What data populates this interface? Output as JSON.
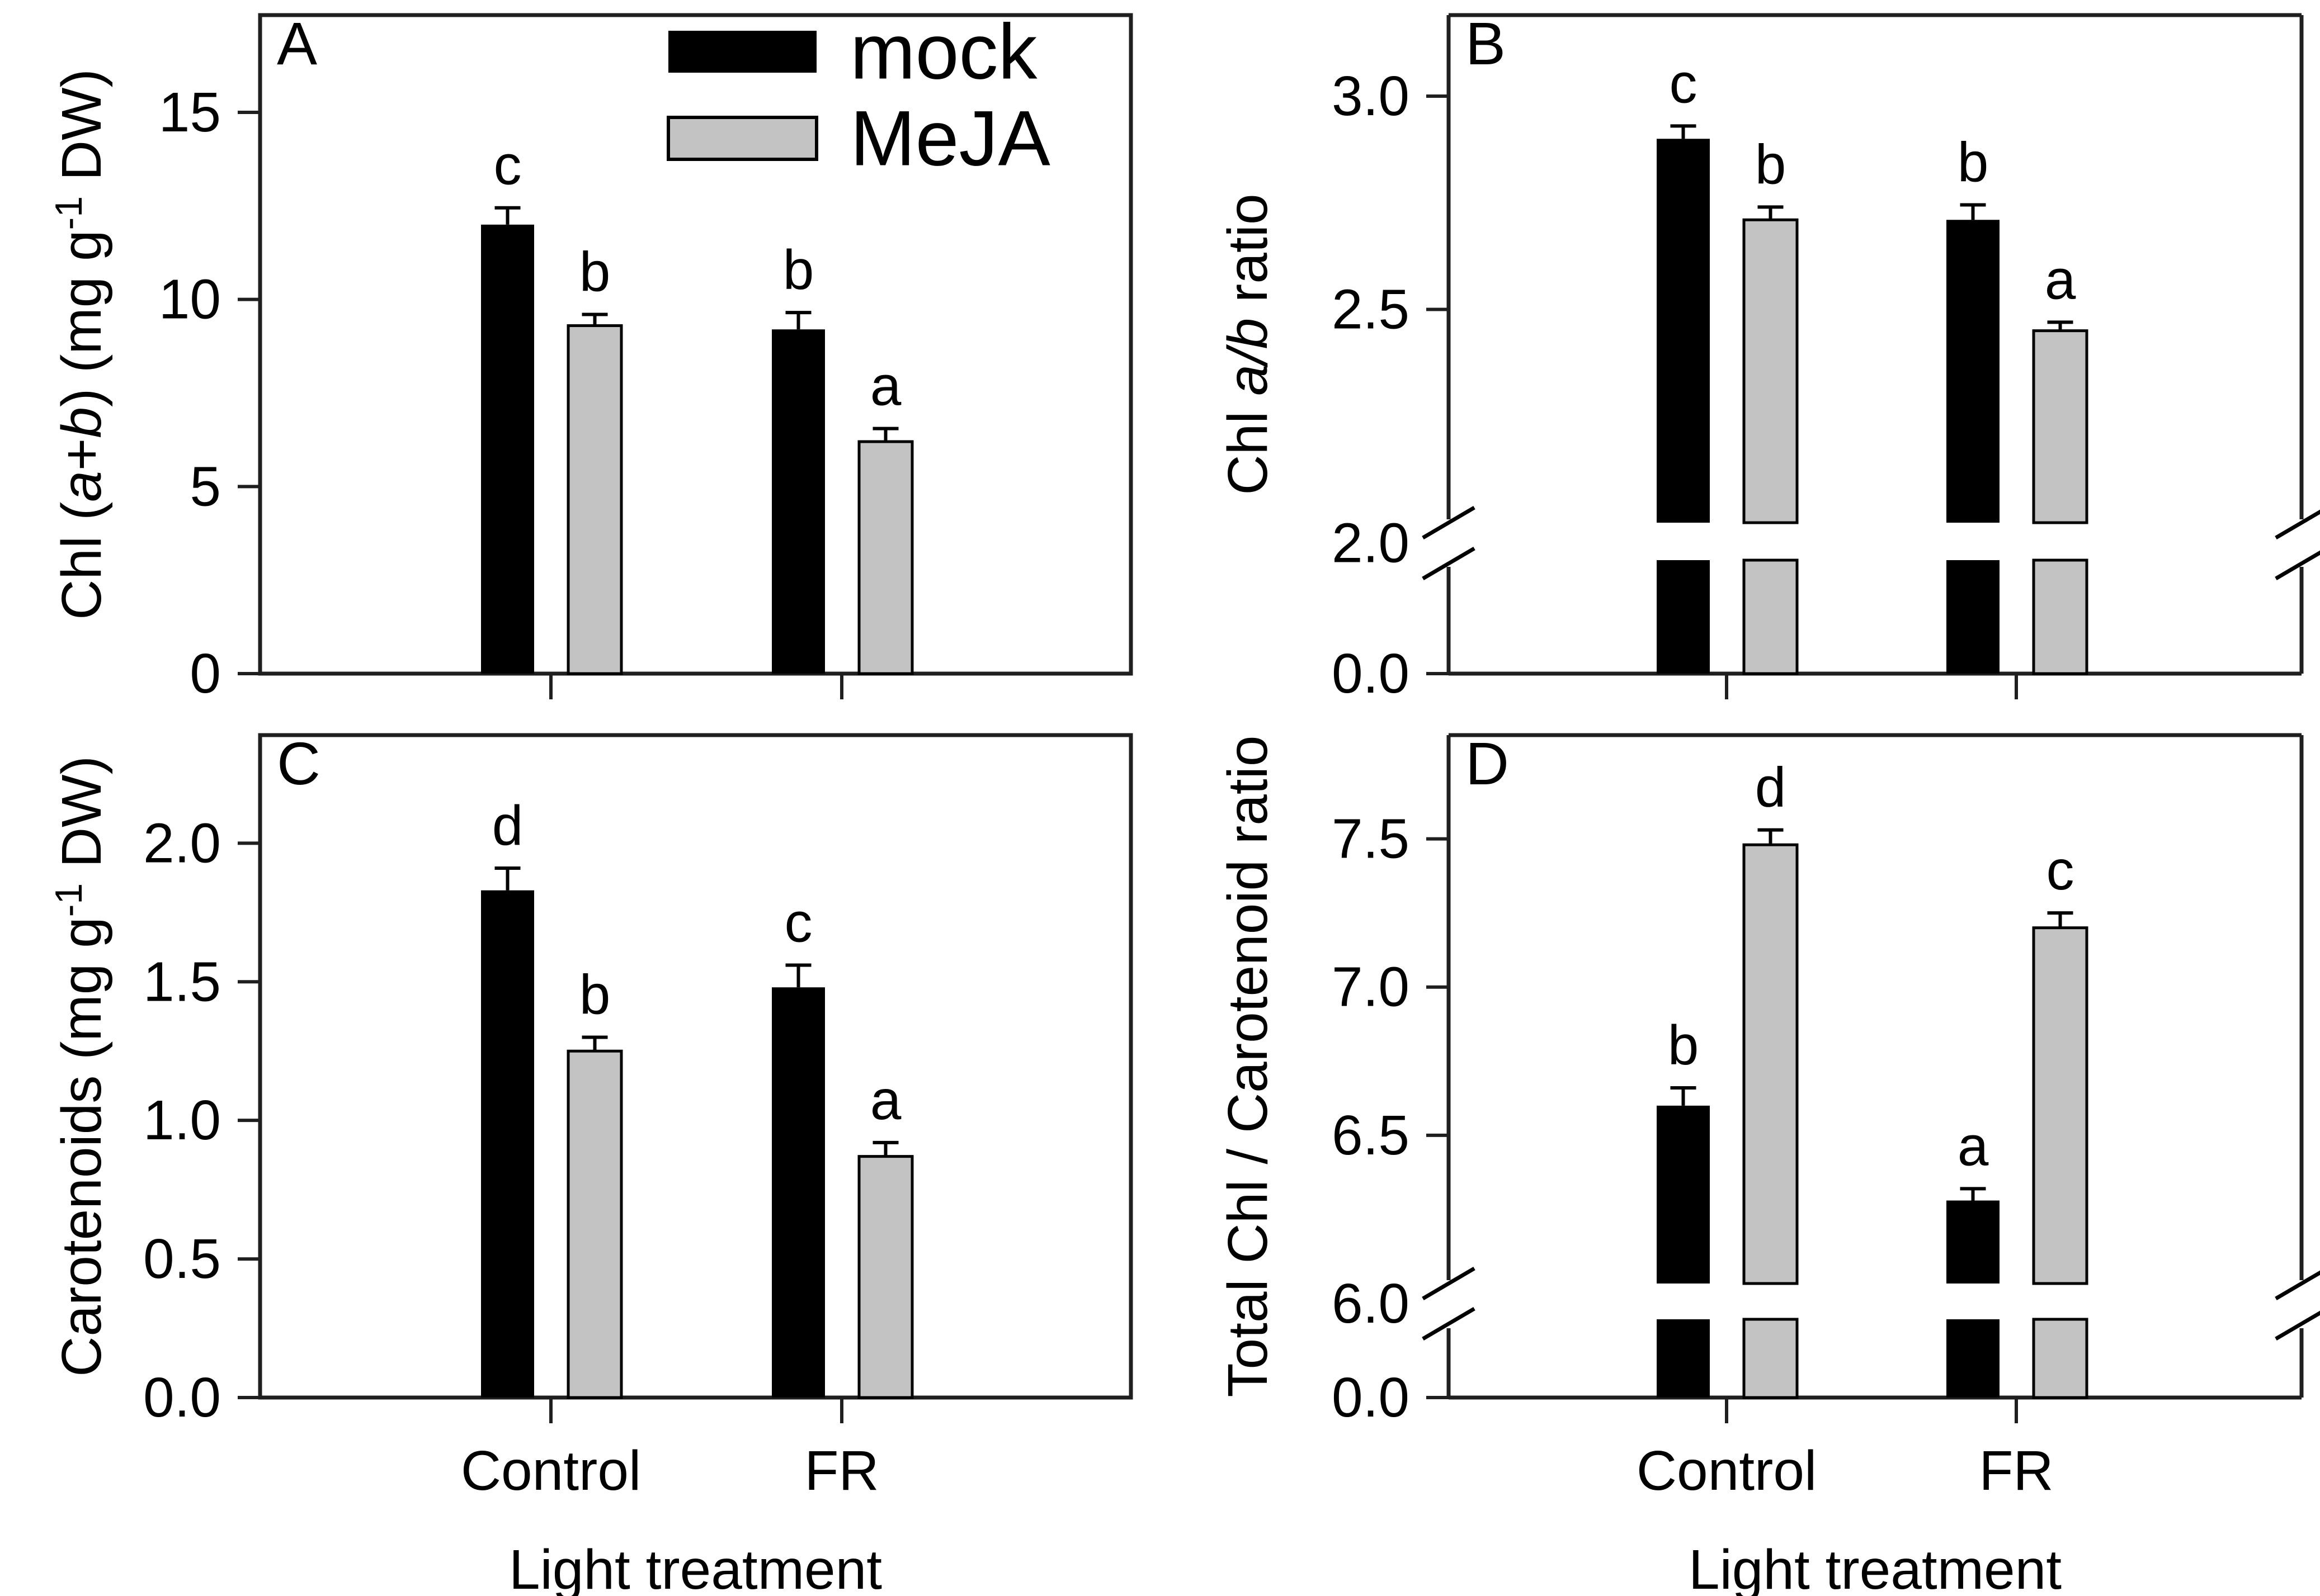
{
  "figure": {
    "background": "#ffffff",
    "x_axis_label": "Light treatment",
    "categories": [
      "Control",
      "FR"
    ],
    "legend": {
      "items": [
        {
          "label": "mock",
          "fill": "#000000",
          "stroke": "none"
        },
        {
          "label": "MeJA",
          "fill": "#c3c3c3",
          "stroke": "#000000"
        }
      ]
    },
    "colors": {
      "mock_bar": "#000000",
      "meja_bar": "#c3c3c3",
      "frame": "#1f1f1f",
      "text": "#000000"
    }
  },
  "chart_data": [
    {
      "panel": "A",
      "type": "bar",
      "title": "",
      "ylabel_plain": "Chl (a+b) (mg g-1 DW)",
      "ylabel_segments": [
        {
          "text": "Chl ("
        },
        {
          "text": "a",
          "italic": true
        },
        {
          "text": "+"
        },
        {
          "text": "b",
          "italic": true
        },
        {
          "text": ") (mg g"
        },
        {
          "text": "-1",
          "sup": true
        },
        {
          "text": " DW)"
        }
      ],
      "categories": [
        "Control",
        "FR"
      ],
      "series": [
        {
          "name": "mock",
          "values": [
            12.0,
            9.2
          ],
          "se": [
            0.45,
            0.45
          ],
          "sig_letters": [
            "c",
            "b"
          ]
        },
        {
          "name": "MeJA",
          "values": [
            9.3,
            6.2
          ],
          "se": [
            0.3,
            0.35
          ],
          "sig_letters": [
            "b",
            "a"
          ]
        }
      ],
      "ylim": [
        0,
        17.6
      ],
      "yticks": {
        "values": [
          0,
          5,
          10,
          15
        ],
        "labels": [
          "0",
          "5",
          "10",
          "15"
        ]
      },
      "broken_axis": false,
      "grid": false
    },
    {
      "panel": "B",
      "type": "bar",
      "title": "",
      "ylabel_plain": "Chl a/b ratio",
      "ylabel_segments": [
        {
          "text": "Chl "
        },
        {
          "text": "a/b",
          "italic": true
        },
        {
          "text": " ratio"
        }
      ],
      "categories": [
        "Control",
        "FR"
      ],
      "series": [
        {
          "name": "mock",
          "values": [
            2.9,
            2.71
          ],
          "se": [
            0.03,
            0.035
          ],
          "sig_letters": [
            "c",
            "b"
          ]
        },
        {
          "name": "MeJA",
          "values": [
            2.71,
            2.45
          ],
          "se": [
            0.03,
            0.02
          ],
          "sig_letters": [
            "b",
            "a"
          ]
        }
      ],
      "broken_axis": true,
      "upper_ylim": [
        2.0,
        3.19
      ],
      "yticks": {
        "values": [
          2.0,
          2.5,
          3.0
        ],
        "labels": [
          "2.0",
          "2.5",
          "3.0"
        ]
      },
      "break_tick_label": "2.0",
      "zero_tick_label": "0.0",
      "grid": false
    },
    {
      "panel": "C",
      "type": "bar",
      "title": "",
      "ylabel_plain": "Carotenoids (mg g-1 DW)",
      "ylabel_segments": [
        {
          "text": "Carotenoids (mg g"
        },
        {
          "text": "-1",
          "sup": true
        },
        {
          "text": " DW)"
        }
      ],
      "categories": [
        "Control",
        "FR"
      ],
      "series": [
        {
          "name": "mock",
          "values": [
            1.83,
            1.48
          ],
          "se": [
            0.08,
            0.08
          ],
          "sig_letters": [
            "d",
            "c"
          ]
        },
        {
          "name": "MeJA",
          "values": [
            1.25,
            0.87
          ],
          "se": [
            0.05,
            0.05
          ],
          "sig_letters": [
            "b",
            "a"
          ]
        }
      ],
      "ylim": [
        0,
        2.39
      ],
      "yticks": {
        "values": [
          0,
          0.5,
          1.0,
          1.5,
          2.0
        ],
        "labels": [
          "0.0",
          "0.5",
          "1.0",
          "1.5",
          "2.0"
        ]
      },
      "broken_axis": false,
      "grid": false
    },
    {
      "panel": "D",
      "type": "bar",
      "title": "",
      "ylabel_plain": "Total Chl / Carotenoid ratio",
      "ylabel_segments": [
        {
          "text": "Total Chl / Carotenoid ratio"
        }
      ],
      "categories": [
        "Control",
        "FR"
      ],
      "series": [
        {
          "name": "mock",
          "values": [
            6.6,
            6.28
          ],
          "se": [
            0.06,
            0.04
          ],
          "sig_letters": [
            "b",
            "a"
          ]
        },
        {
          "name": "MeJA",
          "values": [
            7.48,
            7.2
          ],
          "se": [
            0.05,
            0.05
          ],
          "sig_letters": [
            "d",
            "c"
          ]
        }
      ],
      "broken_axis": true,
      "upper_ylim": [
        6.0,
        7.85
      ],
      "yticks": {
        "values": [
          6.0,
          6.5,
          7.0,
          7.5
        ],
        "labels": [
          "6.0",
          "6.5",
          "7.0",
          "7.5"
        ]
      },
      "break_tick_label": "6.0",
      "zero_tick_label": "0.0",
      "grid": false
    }
  ]
}
